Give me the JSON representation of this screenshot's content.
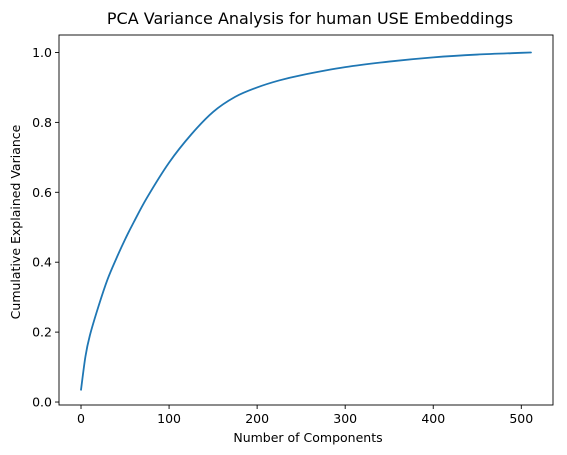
{
  "chart_data": {
    "type": "line",
    "title": "PCA Variance Analysis for human USE Embeddings",
    "xlabel": "Number of Components",
    "ylabel": "Cumulative Explained Variance",
    "xlim": [
      -25,
      536
    ],
    "ylim": [
      -0.0085,
      1.05
    ],
    "xticks": [
      0,
      100,
      200,
      300,
      400,
      500
    ],
    "xtick_labels": [
      "0",
      "100",
      "200",
      "300",
      "400",
      "500"
    ],
    "yticks": [
      0.0,
      0.2,
      0.4,
      0.6,
      0.8,
      1.0
    ],
    "ytick_labels": [
      "0.0",
      "0.2",
      "0.4",
      "0.6",
      "0.8",
      "1.0"
    ],
    "grid": false,
    "color": "#1f77b4",
    "series": [
      {
        "x": [
          0,
          5,
          10,
          20,
          30,
          40,
          50,
          60,
          75,
          100,
          125,
          150,
          175,
          200,
          225,
          250,
          300,
          350,
          400,
          450,
          500,
          511
        ],
        "y": [
          0.035,
          0.13,
          0.19,
          0.275,
          0.35,
          0.41,
          0.465,
          0.515,
          0.585,
          0.685,
          0.765,
          0.83,
          0.873,
          0.9,
          0.92,
          0.935,
          0.958,
          0.974,
          0.986,
          0.994,
          0.999,
          1.0
        ]
      }
    ]
  }
}
